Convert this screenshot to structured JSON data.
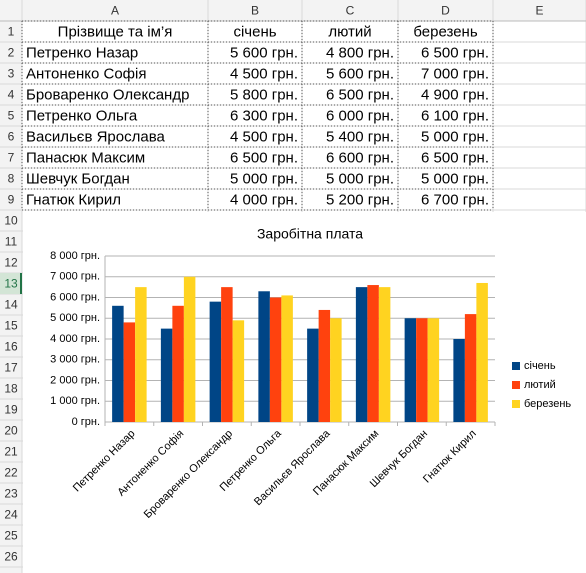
{
  "sheet": {
    "columns": [
      "A",
      "B",
      "C",
      "D",
      "E"
    ],
    "row_numbers": [
      1,
      2,
      3,
      4,
      5,
      6,
      7,
      8,
      9,
      10,
      11,
      12,
      13,
      14,
      15,
      16,
      17,
      18,
      19,
      20,
      21,
      22,
      23,
      24,
      25,
      26
    ],
    "cells": [
      [
        "Прізвище та ім’я",
        "січень",
        "лютий",
        "березень"
      ],
      [
        "Петренко Назар",
        "5 600 грн.",
        "4 800 грн.",
        "6 500 грн."
      ],
      [
        "Антоненко Софія",
        "4 500 грн.",
        "5 600 грн.",
        "7 000 грн."
      ],
      [
        "Броваренко Олександр",
        "5 800 грн.",
        "6 500 грн.",
        "4 900 грн."
      ],
      [
        "Петренко Ольга",
        "6 300 грн.",
        "6 000 грн.",
        "6 100 грн."
      ],
      [
        "Васильєв Ярослава",
        "4 500 грн.",
        "5 400 грн.",
        "5 000 грн."
      ],
      [
        "Панасюк Максим",
        "6 500 грн.",
        "6 600 грн.",
        "6 500 грн."
      ],
      [
        "Шевчук Богдан",
        "5 000 грн.",
        "5 000 грн.",
        "5 000 грн."
      ],
      [
        "Гнатюк Кирил",
        "4 000 грн.",
        "5 200 грн.",
        "6 700 грн."
      ]
    ]
  },
  "chart_data": {
    "type": "bar",
    "title": "Заробітна плата",
    "categories": [
      "Петренко Назар",
      "Антоненко Софія",
      "Броваренко Олександр",
      "Петренко Ольга",
      "Васильєв Ярослава",
      "Панасюк Максим",
      "Шевчук Богдан",
      "Гнатюк Кирил"
    ],
    "series": [
      {
        "name": "січень",
        "color": "#004586",
        "values": [
          5600,
          4500,
          5800,
          6300,
          4500,
          6500,
          5000,
          4000
        ]
      },
      {
        "name": "лютий",
        "color": "#ff420e",
        "values": [
          4800,
          5600,
          6500,
          6000,
          5400,
          6600,
          5000,
          5200
        ]
      },
      {
        "name": "березень",
        "color": "#ffd320",
        "values": [
          6500,
          7000,
          4900,
          6100,
          5000,
          6500,
          5000,
          6700
        ]
      }
    ],
    "ylim": [
      0,
      8000
    ],
    "yticks": [
      {
        "value": 0,
        "label": "0 грн."
      },
      {
        "value": 1000,
        "label": "1 000 грн."
      },
      {
        "value": 2000,
        "label": "2 000 грн."
      },
      {
        "value": 3000,
        "label": "3 000 грн."
      },
      {
        "value": 4000,
        "label": "4 000 грн."
      },
      {
        "value": 5000,
        "label": "5 000 грн."
      },
      {
        "value": 6000,
        "label": "6 000 грн."
      },
      {
        "value": 7000,
        "label": "7 000 грн."
      },
      {
        "value": 8000,
        "label": "8 000 грн."
      }
    ],
    "grid": true,
    "legend": "right"
  }
}
